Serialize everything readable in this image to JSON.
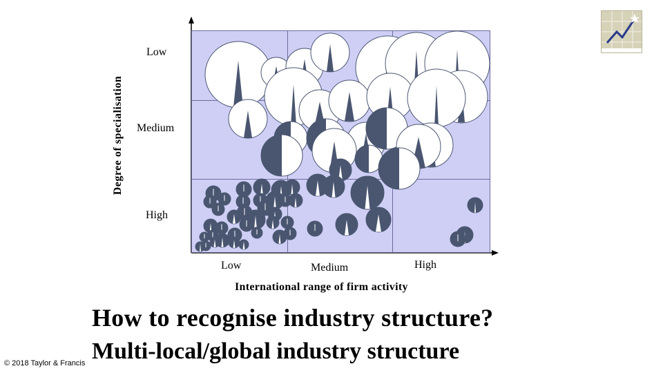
{
  "diagram": {
    "y_axis_title": "Degree of specialisation",
    "y_levels": [
      "Low",
      "Medium",
      "High"
    ],
    "x_axis_title": "International range of firm activity",
    "x_levels": [
      "Low",
      "Medium",
      "High"
    ]
  },
  "slide": {
    "title": "How to recognise industry structure?",
    "subtitle": "Multi-local/global industry structure",
    "copyright": "© 2018 Taylor & Francis"
  },
  "colors": {
    "grid_fill": "#cfcff6",
    "grid_line": "#6b6b9a",
    "bubble_dark": "#4a5670",
    "bubble_light": "#ffffff",
    "logo_bg": "#d6d2b8",
    "logo_line": "#2a3a8a"
  },
  "logo": {
    "icon": "growth-chart-logo-icon"
  }
}
